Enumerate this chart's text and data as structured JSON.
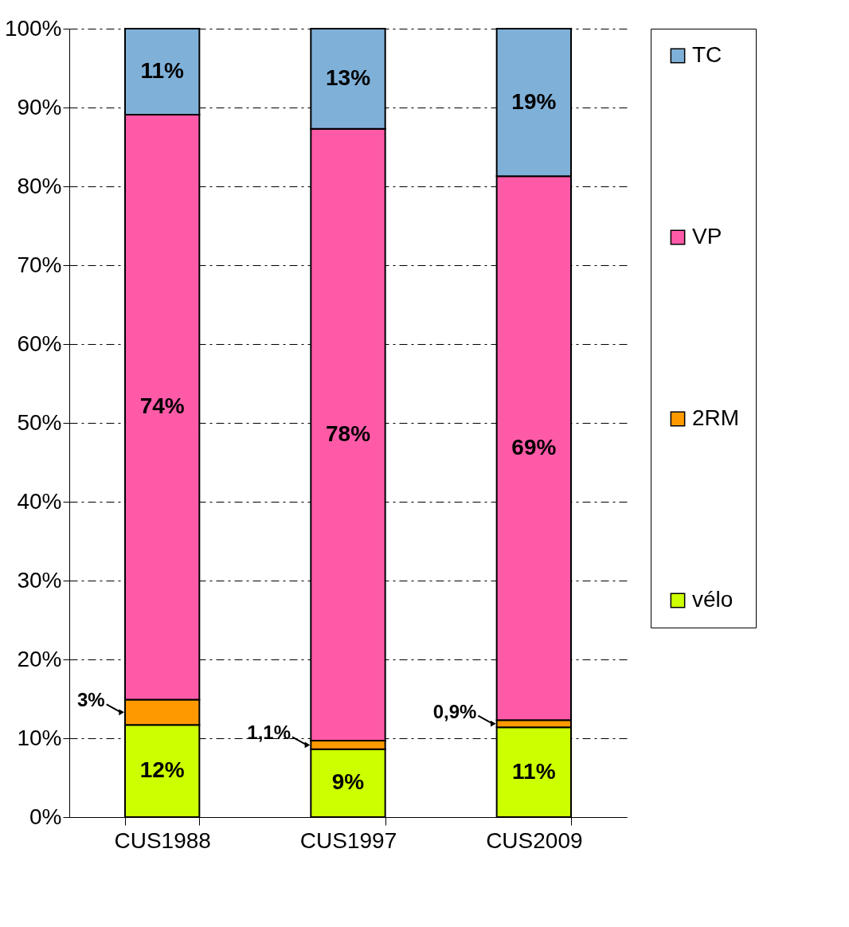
{
  "chart_data": {
    "type": "bar",
    "stacked": true,
    "categories": [
      "CUS1988",
      "CUS1997",
      "CUS2009"
    ],
    "series": [
      {
        "name": "vélo",
        "color": "#ccff00",
        "values": [
          11.7,
          8.6,
          11.4
        ],
        "value_labels": [
          "12%",
          "9%",
          "11%"
        ]
      },
      {
        "name": "2RM",
        "color": "#ff9900",
        "values": [
          3.2,
          1.1,
          0.9
        ],
        "value_labels": [
          "3%",
          "1,1%",
          "0,9%"
        ]
      },
      {
        "name": "VP",
        "color": "#ff5aa8",
        "values": [
          74.2,
          77.6,
          69.0
        ],
        "value_labels": [
          "74%",
          "78%",
          "69%"
        ]
      },
      {
        "name": "TC",
        "color": "#7fb0d8",
        "values": [
          10.9,
          12.7,
          18.7
        ],
        "value_labels": [
          "11%",
          "13%",
          "19%"
        ]
      }
    ],
    "ylim": [
      0,
      100
    ],
    "yticks": [
      {
        "value": 0,
        "label": "0%"
      },
      {
        "value": 10,
        "label": "10%"
      },
      {
        "value": 20,
        "label": "20%"
      },
      {
        "value": 30,
        "label": "30%"
      },
      {
        "value": 40,
        "label": "40%"
      },
      {
        "value": 50,
        "label": "50%"
      },
      {
        "value": 60,
        "label": "60%"
      },
      {
        "value": 70,
        "label": "70%"
      },
      {
        "value": 80,
        "label": "80%"
      },
      {
        "value": 90,
        "label": "90%"
      },
      {
        "value": 100,
        "label": "100%"
      }
    ],
    "grid": "y",
    "legend": "right"
  }
}
